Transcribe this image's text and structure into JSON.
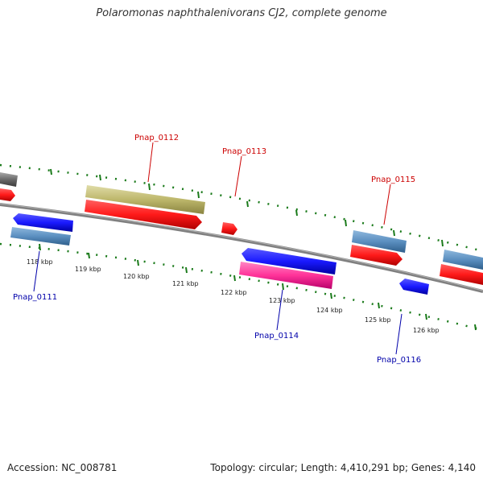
{
  "title": "Polaromonas naphthalenivorans CJ2, complete genome",
  "footer": {
    "accession": "Accession: NC_008781",
    "summary": "Topology: circular; Length: 4,410,291 bp; Genes: 4,140"
  },
  "scale_labels": [
    "118 kbp",
    "119 kbp",
    "120 kbp",
    "121 kbp",
    "122 kbp",
    "123 kbp",
    "124 kbp",
    "125 kbp",
    "126 kbp"
  ],
  "gene_labels": {
    "forward": [
      "Pnap_0112",
      "Pnap_0113",
      "Pnap_0115"
    ],
    "reverse": [
      "Pnap_0111",
      "Pnap_0114",
      "Pnap_0116"
    ]
  },
  "colors": {
    "backbone": "#808080",
    "forward_label": "#cc0000",
    "reverse_label": "#0000aa",
    "tick": "#1a7a1a",
    "cds_forward": "#ff1a1a",
    "cds_reverse": "#1a1aff",
    "gene_feature": "#5b8fc0",
    "rrna_like": "#bdb76b",
    "misc": "#ff3399",
    "gray_feature": "#6a6a6a"
  }
}
